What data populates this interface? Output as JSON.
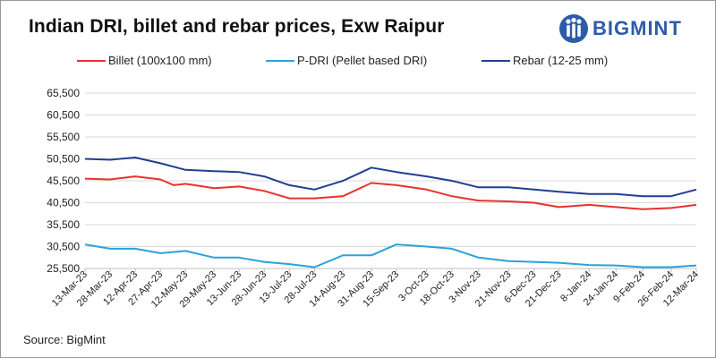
{
  "title": "Indian DRI, billet and rebar prices, Exw Raipur",
  "logo": {
    "text": "BIGMINT",
    "icon": "bigmint-people-icon",
    "color": "#2d5ba8"
  },
  "source": "Source: BigMint",
  "chart_data": {
    "type": "line",
    "title": "Indian DRI, billet and rebar prices, Exw Raipur",
    "xlabel": "",
    "ylabel": "",
    "ylim": [
      25500,
      65500
    ],
    "yticks": [
      25500,
      30500,
      35500,
      40500,
      45500,
      50500,
      55500,
      60500,
      65500
    ],
    "ytick_labels": [
      "25,500",
      "30,500",
      "35,500",
      "40,500",
      "45,500",
      "50,500",
      "55,500",
      "60,500",
      "65,500"
    ],
    "x_range": [
      "13-Mar-23",
      "12-Mar-24"
    ],
    "xtick_labels": [
      "13-Mar-23",
      "28-Mar-23",
      "12-Apr-23",
      "27-Apr-23",
      "12-May-23",
      "29-May-23",
      "13-Jun-23",
      "28-Jun-23",
      "13-Jul-23",
      "28-Jul-23",
      "14-Aug-23",
      "31-Aug-23",
      "15-Sep-23",
      "3-Oct-23",
      "18-Oct-23",
      "3-Nov-23",
      "21-Nov-23",
      "6-Dec-23",
      "21-Dec-23",
      "8-Jan-24",
      "24-Jan-24",
      "9-Feb-24",
      "26-Feb-24",
      "12-Mar-24"
    ],
    "grid": true,
    "legend_position": "top",
    "series": [
      {
        "name": "Billet (100x100 mm)",
        "color": "#e8322b",
        "x": [
          "13-Mar-23",
          "28-Mar-23",
          "12-Apr-23",
          "27-Apr-23",
          "5-May-23",
          "12-May-23",
          "29-May-23",
          "13-Jun-23",
          "28-Jun-23",
          "13-Jul-23",
          "28-Jul-23",
          "14-Aug-23",
          "31-Aug-23",
          "15-Sep-23",
          "3-Oct-23",
          "18-Oct-23",
          "3-Nov-23",
          "21-Nov-23",
          "6-Dec-23",
          "21-Dec-23",
          "8-Jan-24",
          "24-Jan-24",
          "9-Feb-24",
          "26-Feb-24",
          "12-Mar-24"
        ],
        "values": [
          46000,
          45800,
          46500,
          45800,
          44500,
          44800,
          43800,
          44200,
          43200,
          41500,
          41500,
          42000,
          45000,
          44500,
          43500,
          42000,
          41000,
          40800,
          40500,
          39500,
          40000,
          39500,
          39000,
          39300,
          40000
        ]
      },
      {
        "name": "P-DRI (Pellet based DRI)",
        "color": "#29a3dc",
        "x": [
          "13-Mar-23",
          "28-Mar-23",
          "12-Apr-23",
          "27-Apr-23",
          "12-May-23",
          "29-May-23",
          "13-Jun-23",
          "28-Jun-23",
          "13-Jul-23",
          "28-Jul-23",
          "14-Aug-23",
          "31-Aug-23",
          "15-Sep-23",
          "3-Oct-23",
          "18-Oct-23",
          "3-Nov-23",
          "21-Nov-23",
          "6-Dec-23",
          "21-Dec-23",
          "8-Jan-24",
          "24-Jan-24",
          "9-Feb-24",
          "26-Feb-24",
          "12-Mar-24"
        ],
        "values": [
          31000,
          30000,
          30000,
          29000,
          29500,
          28000,
          28000,
          27000,
          26500,
          25800,
          28500,
          28500,
          31000,
          30500,
          30000,
          28000,
          27200,
          27000,
          26800,
          26300,
          26200,
          25800,
          25800,
          26200
        ]
      },
      {
        "name": "Rebar (12-25 mm)",
        "color": "#1f3f91",
        "x": [
          "13-Mar-23",
          "28-Mar-23",
          "12-Apr-23",
          "27-Apr-23",
          "12-May-23",
          "29-May-23",
          "13-Jun-23",
          "28-Jun-23",
          "13-Jul-23",
          "28-Jul-23",
          "14-Aug-23",
          "31-Aug-23",
          "15-Sep-23",
          "3-Oct-23",
          "18-Oct-23",
          "3-Nov-23",
          "21-Nov-23",
          "6-Dec-23",
          "21-Dec-23",
          "8-Jan-24",
          "24-Jan-24",
          "9-Feb-24",
          "26-Feb-24",
          "12-Mar-24"
        ],
        "values": [
          50500,
          50300,
          50800,
          49500,
          48000,
          47700,
          47500,
          46500,
          44500,
          43500,
          45500,
          48500,
          47500,
          46500,
          45500,
          44000,
          44000,
          43500,
          43000,
          42500,
          42500,
          42000,
          42000,
          43500
        ]
      }
    ]
  }
}
